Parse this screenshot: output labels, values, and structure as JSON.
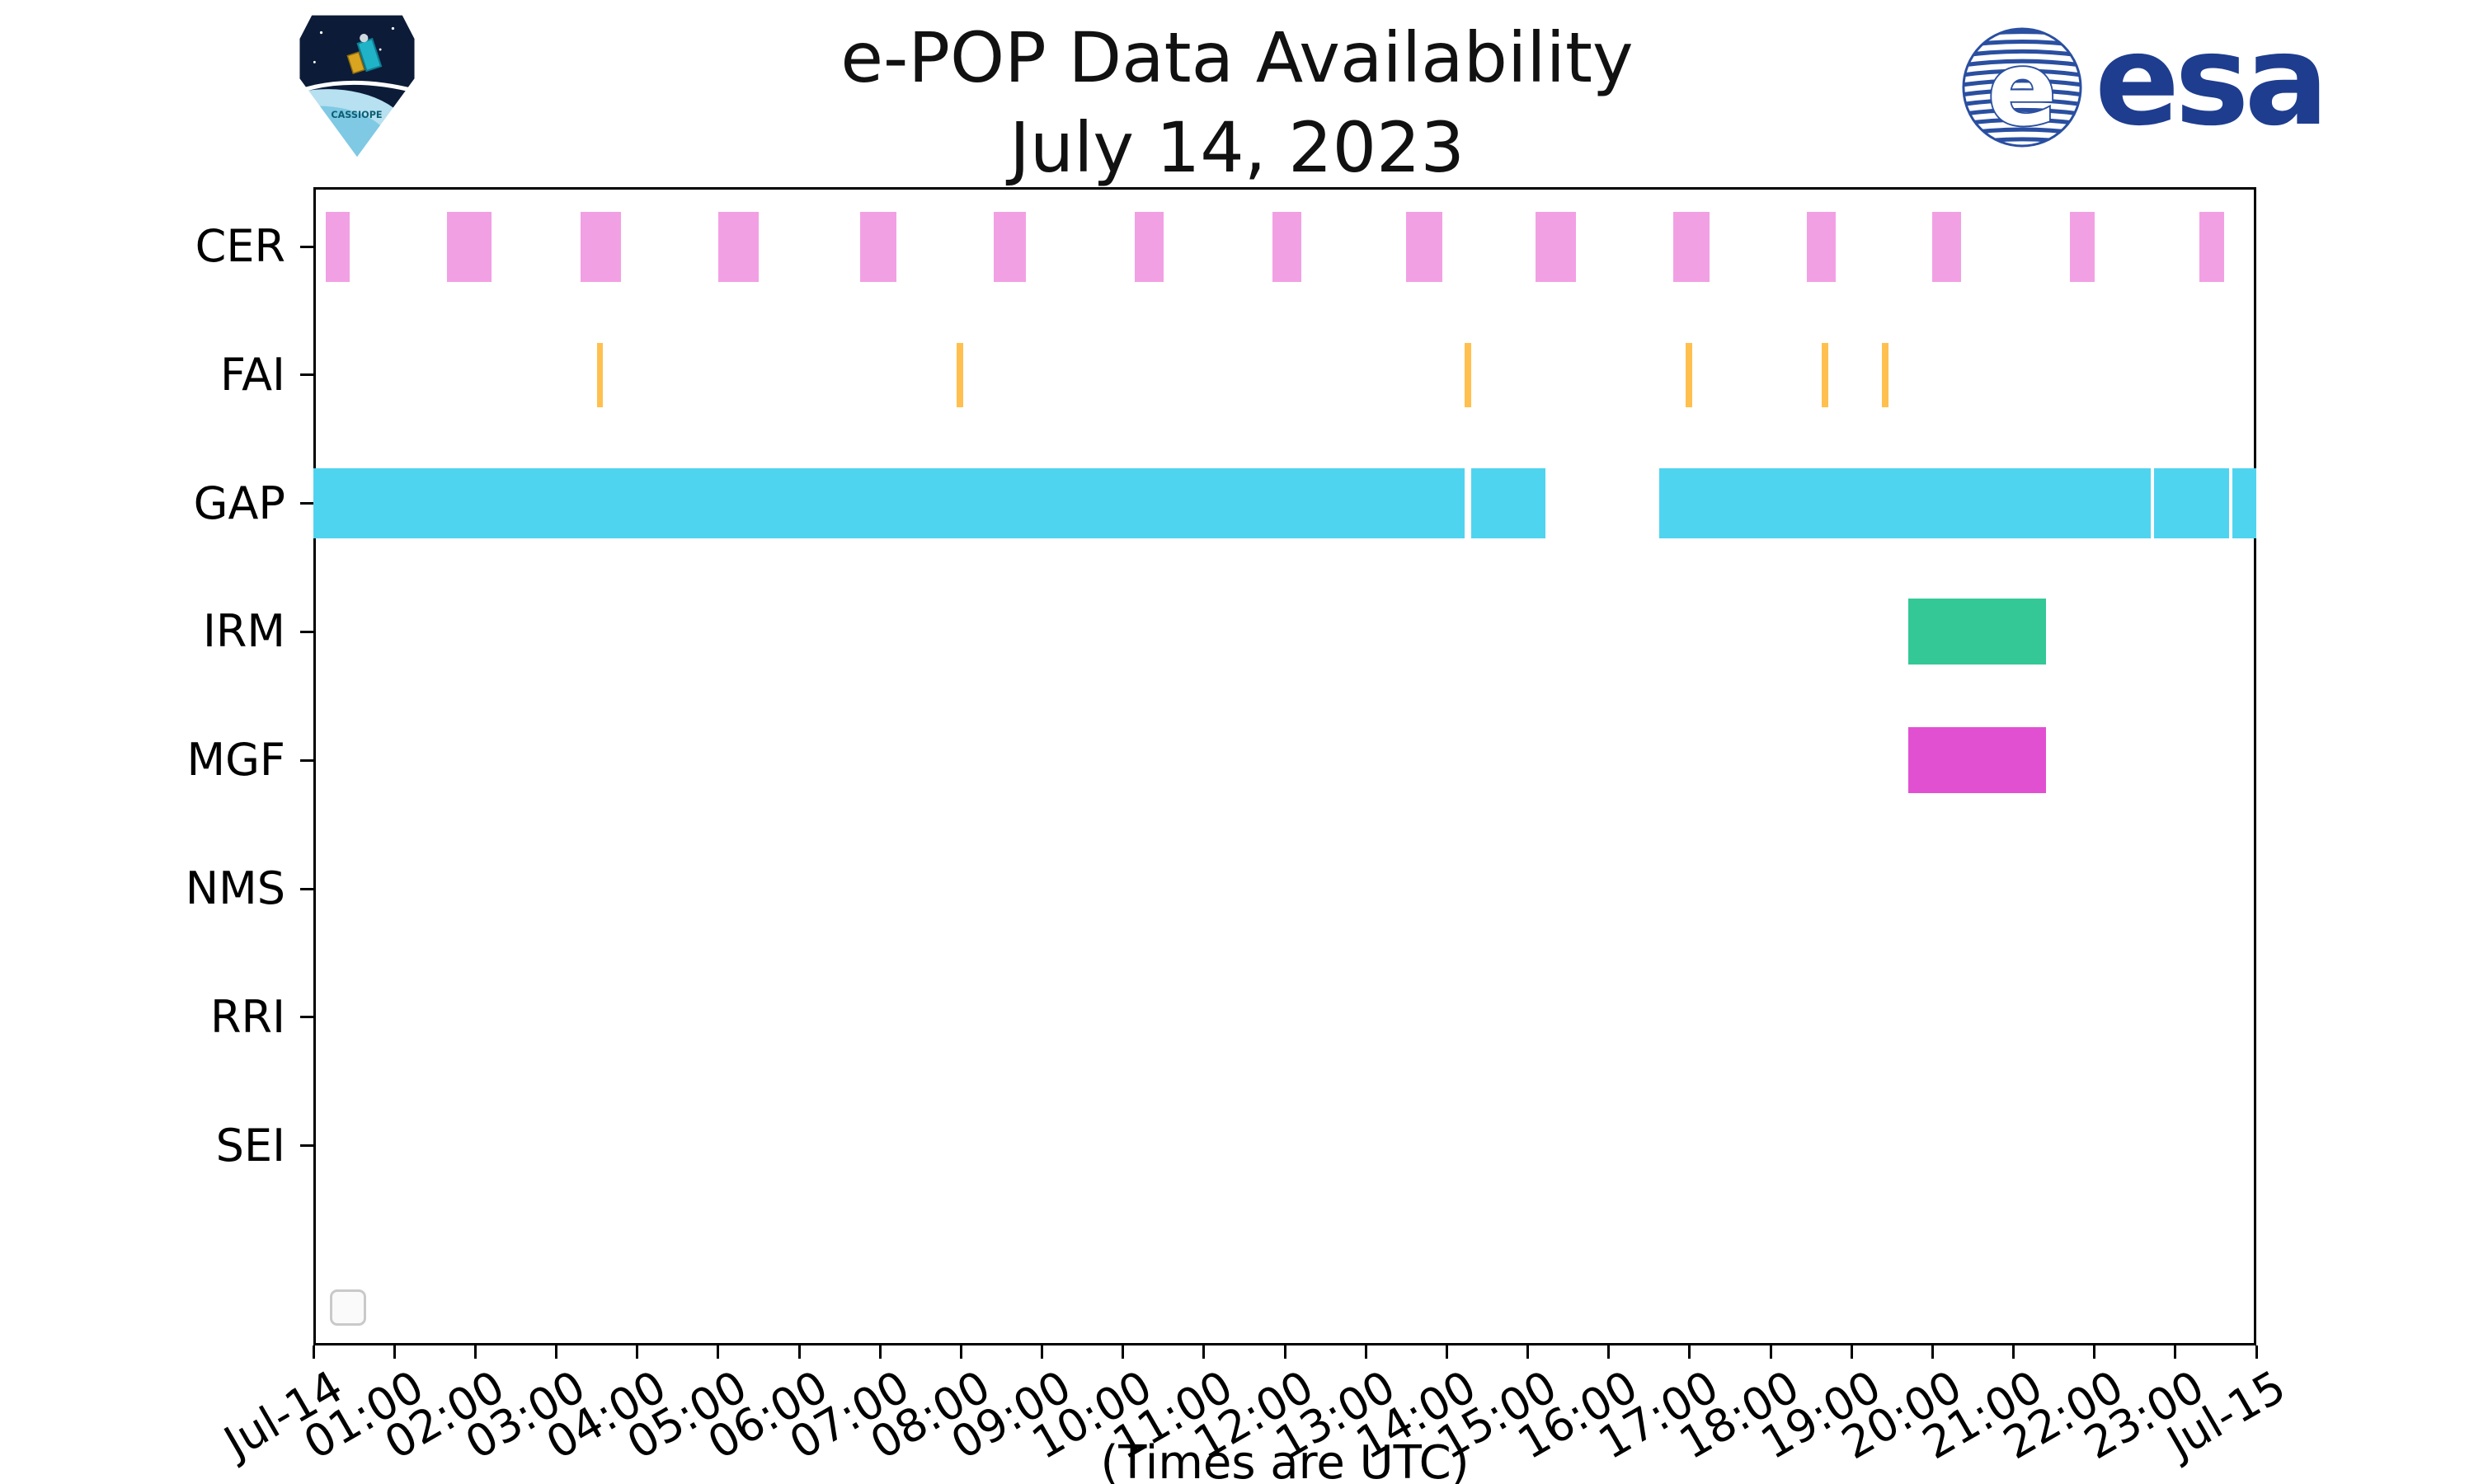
{
  "title": "e-POP Data Availability",
  "subtitle": "July 14, 2023",
  "xlabel": "(Times are UTC)",
  "logos": {
    "mission_patch": "CASSIOPE",
    "agency_wordmark": "esa",
    "emblem_letter": "e",
    "esa_blue": "#1e3d8f"
  },
  "chart_data": {
    "type": "timeline",
    "title": "e-POP Data Availability",
    "subtitle": "July 14, 2023",
    "xlabel": "(Times are UTC)",
    "rows": [
      "CER",
      "FAI",
      "GAP",
      "IRM",
      "MGF",
      "NMS",
      "RRI",
      "SEI"
    ],
    "x_ticks": [
      "Jul-14",
      "01:00",
      "02:00",
      "03:00",
      "04:00",
      "05:00",
      "06:00",
      "07:00",
      "08:00",
      "09:00",
      "10:00",
      "11:00",
      "12:00",
      "13:00",
      "14:00",
      "15:00",
      "16:00",
      "17:00",
      "18:00",
      "19:00",
      "20:00",
      "21:00",
      "22:00",
      "23:00",
      "Jul-15"
    ],
    "xlim_hours": [
      0,
      24
    ],
    "grid": false,
    "legend": "empty-box-bottom-left",
    "colors": {
      "CER": "#f2a0e4",
      "FAI": "#ffc04f",
      "GAP": "#4fd4f0",
      "IRM": "#33c896",
      "MGF": "#e250d2"
    },
    "intervals_hours_utc": {
      "CER": [
        [
          0.15,
          0.45
        ],
        [
          1.65,
          2.2
        ],
        [
          3.3,
          3.8
        ],
        [
          5.0,
          5.5
        ],
        [
          6.75,
          7.2
        ],
        [
          8.4,
          8.8
        ],
        [
          10.15,
          10.5
        ],
        [
          11.85,
          12.2
        ],
        [
          13.5,
          13.95
        ],
        [
          15.1,
          15.6
        ],
        [
          16.8,
          17.25
        ],
        [
          18.45,
          18.8
        ],
        [
          20.0,
          20.35
        ],
        [
          21.7,
          22.0
        ],
        [
          23.3,
          23.6
        ]
      ],
      "FAI": [
        [
          3.5,
          3.58
        ],
        [
          7.95,
          8.03
        ],
        [
          14.22,
          14.3
        ],
        [
          16.95,
          17.03
        ],
        [
          18.63,
          18.71
        ],
        [
          19.38,
          19.46
        ]
      ],
      "GAP": [
        [
          0.0,
          14.22
        ],
        [
          14.3,
          15.22
        ],
        [
          16.62,
          22.7
        ],
        [
          22.74,
          23.66
        ],
        [
          23.7,
          24.0
        ]
      ],
      "IRM": [
        [
          19.7,
          21.4
        ]
      ],
      "MGF": [
        [
          19.7,
          21.4
        ]
      ],
      "NMS": [],
      "RRI": [],
      "SEI": []
    }
  }
}
